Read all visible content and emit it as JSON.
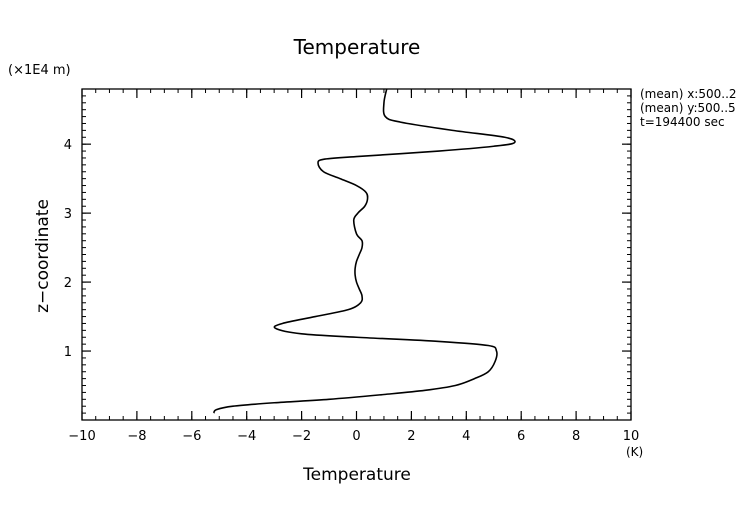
{
  "chart_data": {
    "type": "line",
    "title": "Temperature",
    "xlabel": "Temperature",
    "ylabel": "z−coordinate",
    "x_unit": "(K)",
    "y_unit": "(×1E4 m)",
    "xlim": [
      -10,
      10
    ],
    "ylim": [
      0,
      4.8
    ],
    "x_ticks": [
      -10,
      -8,
      -6,
      -4,
      -2,
      0,
      2,
      4,
      6,
      8,
      10
    ],
    "x_tick_labels": [
      "−10",
      "−8",
      "−6",
      "−4",
      "−2",
      "0",
      "2",
      "4",
      "6",
      "8",
      "10"
    ],
    "y_ticks": [
      1,
      2,
      3,
      4
    ],
    "y_tick_labels": [
      "1",
      "2",
      "3",
      "4"
    ],
    "grid": false,
    "annotations": [
      "(mean) x:500..2",
      "(mean) y:500..5",
      "t=194400 sec"
    ],
    "series": [
      {
        "x": [
          -5.2,
          -5.1,
          -4.5,
          -3.0,
          -1.0,
          1.0,
          2.5,
          3.6,
          4.3,
          4.8,
          5.05,
          5.1,
          4.8,
          3.0,
          0.0,
          -2.0,
          -2.95,
          -2.7,
          -1.5,
          -0.3,
          0.15,
          0.2,
          0.1,
          0.0,
          -0.05,
          -0.05,
          0.0,
          0.1,
          0.2,
          0.2,
          0.0,
          -0.1,
          0.05,
          0.3,
          0.4,
          0.35,
          0.0,
          -0.6,
          -1.2,
          -1.4,
          -1.2,
          0.0,
          3.0,
          5.0,
          5.75,
          5.4,
          3.5,
          1.6,
          1.05,
          1.0,
          1.1
        ],
        "y": [
          0.1,
          0.15,
          0.2,
          0.25,
          0.3,
          0.37,
          0.43,
          0.5,
          0.6,
          0.7,
          0.85,
          1.0,
          1.08,
          1.14,
          1.2,
          1.25,
          1.33,
          1.4,
          1.5,
          1.6,
          1.7,
          1.8,
          1.9,
          2.0,
          2.1,
          2.2,
          2.3,
          2.4,
          2.5,
          2.6,
          2.7,
          2.9,
          3.0,
          3.1,
          3.2,
          3.3,
          3.4,
          3.5,
          3.6,
          3.72,
          3.78,
          3.82,
          3.9,
          3.97,
          4.02,
          4.1,
          4.2,
          4.32,
          4.4,
          4.6,
          4.8
        ]
      }
    ]
  }
}
